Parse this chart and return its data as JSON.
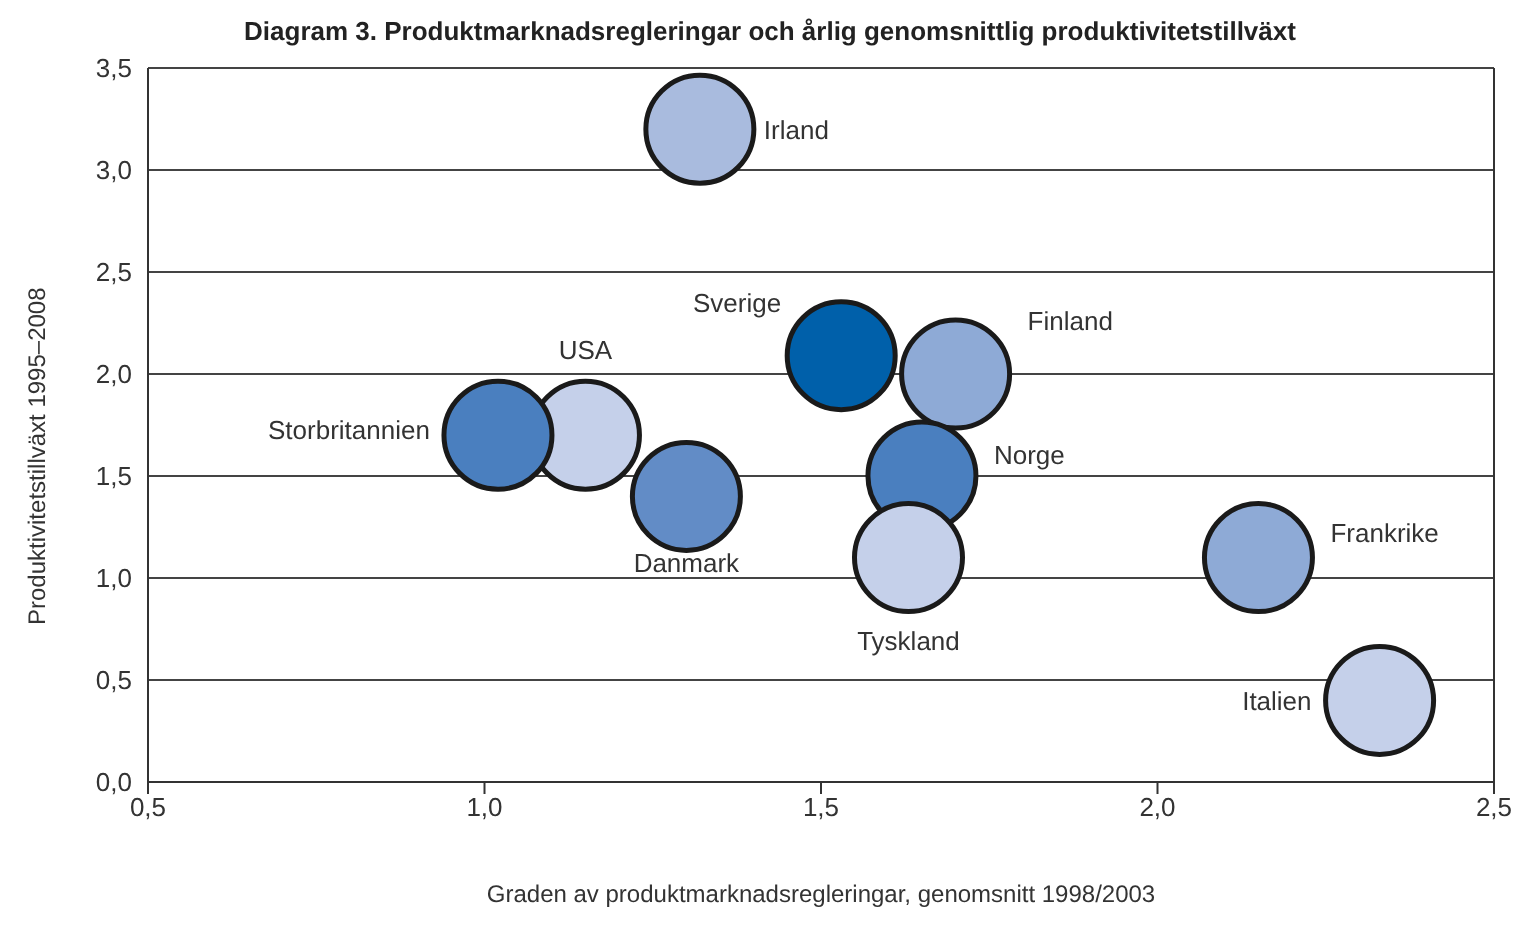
{
  "chart_data": {
    "type": "scatter",
    "title": "Diagram 3. Produktmarknadsregleringar och årlig genomsnittlig produktivitetstillväxt",
    "xlabel": "Graden av produktmarknadsregleringar, genomsnitt 1998/2003",
    "ylabel": "Produktivitetstillväxt 1995–2008",
    "xlim": [
      0.5,
      2.5
    ],
    "xticks": [
      {
        "value": 0.5,
        "label": "0,5"
      },
      {
        "value": 1.0,
        "label": "1,0"
      },
      {
        "value": 1.5,
        "label": "1,5"
      },
      {
        "value": 2.0,
        "label": "2,0"
      },
      {
        "value": 2.5,
        "label": "2,5"
      }
    ],
    "ylim": [
      0,
      3.5
    ],
    "yticks": [
      {
        "value": 0,
        "label": "0,0"
      },
      {
        "value": 0.5,
        "label": "0,5"
      },
      {
        "value": 1.0,
        "label": "1,0"
      },
      {
        "value": 1.5,
        "label": "1,5"
      },
      {
        "value": 2.0,
        "label": "2,0"
      },
      {
        "value": 2.5,
        "label": "2,5"
      },
      {
        "value": 3.0,
        "label": "3,0"
      },
      {
        "value": 3.5,
        "label": "3,5"
      }
    ],
    "grid": "y",
    "legend": false,
    "marker": "circle",
    "series": [
      {
        "name": "Irland",
        "color": "#a9bbde",
        "x": [
          1.32
        ],
        "values": [
          3.2
        ]
      },
      {
        "name": "Sverige",
        "color": "#0060aa",
        "x": [
          1.53
        ],
        "values": [
          2.09
        ]
      },
      {
        "name": "Finland",
        "color": "#8eaad6",
        "x": [
          1.7
        ],
        "values": [
          2.0
        ]
      },
      {
        "name": "USA",
        "color": "#c5d0ea",
        "x": [
          1.15
        ],
        "values": [
          1.7
        ]
      },
      {
        "name": "Storbritannien",
        "color": "#4a7fbf",
        "x": [
          1.02
        ],
        "values": [
          1.7
        ]
      },
      {
        "name": "Danmark",
        "color": "#628cc6",
        "x": [
          1.3
        ],
        "values": [
          1.4
        ]
      },
      {
        "name": "Norge",
        "color": "#4a7fbf",
        "x": [
          1.65
        ],
        "values": [
          1.5
        ]
      },
      {
        "name": "Tyskland",
        "color": "#c5d0ea",
        "x": [
          1.63
        ],
        "values": [
          1.1
        ]
      },
      {
        "name": "Frankrike",
        "color": "#8eaad6",
        "x": [
          2.15
        ],
        "values": [
          1.1
        ]
      },
      {
        "name": "Italien",
        "color": "#c5d0ea",
        "x": [
          2.33
        ],
        "values": [
          0.4
        ]
      }
    ]
  }
}
